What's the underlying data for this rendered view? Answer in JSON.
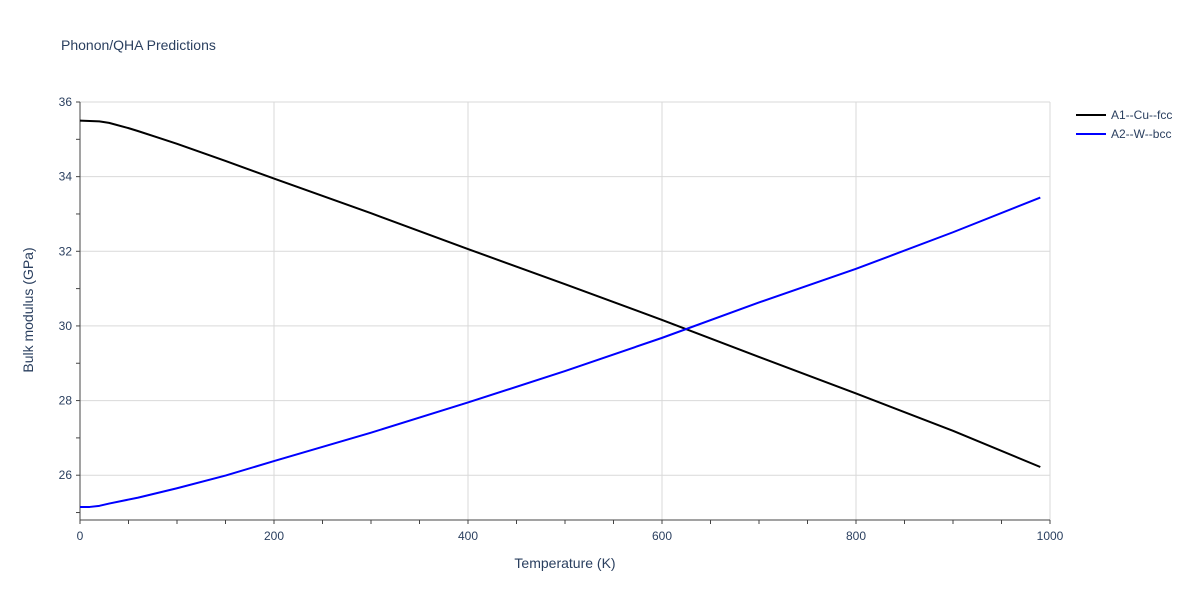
{
  "chart_data": {
    "type": "line",
    "title": "Phonon/QHA Predictions",
    "xlabel": "Temperature (K)",
    "ylabel": "Bulk modulus (GPa)",
    "xlim": [
      0,
      1000
    ],
    "ylim": [
      24.8,
      36
    ],
    "x_ticks": [
      0,
      200,
      400,
      600,
      800,
      1000
    ],
    "x_tick_labels": [
      "0",
      "200",
      "400",
      "600",
      "800",
      "1000"
    ],
    "y_ticks": [
      26,
      28,
      30,
      32,
      34,
      36
    ],
    "y_tick_labels": [
      "26",
      "28",
      "30",
      "32",
      "34",
      "36"
    ],
    "grid": true,
    "legend_position": "top-right",
    "series": [
      {
        "name": "A1--Cu--fcc",
        "color": "#000000",
        "x": [
          0,
          20,
          30,
          50,
          60,
          80,
          100,
          150,
          200,
          300,
          400,
          500,
          600,
          700,
          800,
          900,
          990
        ],
        "y": [
          35.5,
          35.48,
          35.44,
          35.3,
          35.22,
          35.05,
          34.88,
          34.42,
          33.95,
          33.02,
          32.06,
          31.12,
          30.16,
          29.17,
          28.19,
          27.19,
          26.22
        ]
      },
      {
        "name": "A2--W--bcc",
        "color": "#0000ff",
        "x": [
          0,
          10,
          20,
          30,
          60,
          100,
          150,
          200,
          300,
          400,
          500,
          600,
          700,
          800,
          900,
          990
        ],
        "y": [
          25.15,
          25.15,
          25.18,
          25.24,
          25.4,
          25.65,
          25.99,
          26.38,
          27.14,
          27.95,
          28.79,
          29.68,
          30.63,
          31.53,
          32.51,
          33.44
        ]
      }
    ]
  }
}
